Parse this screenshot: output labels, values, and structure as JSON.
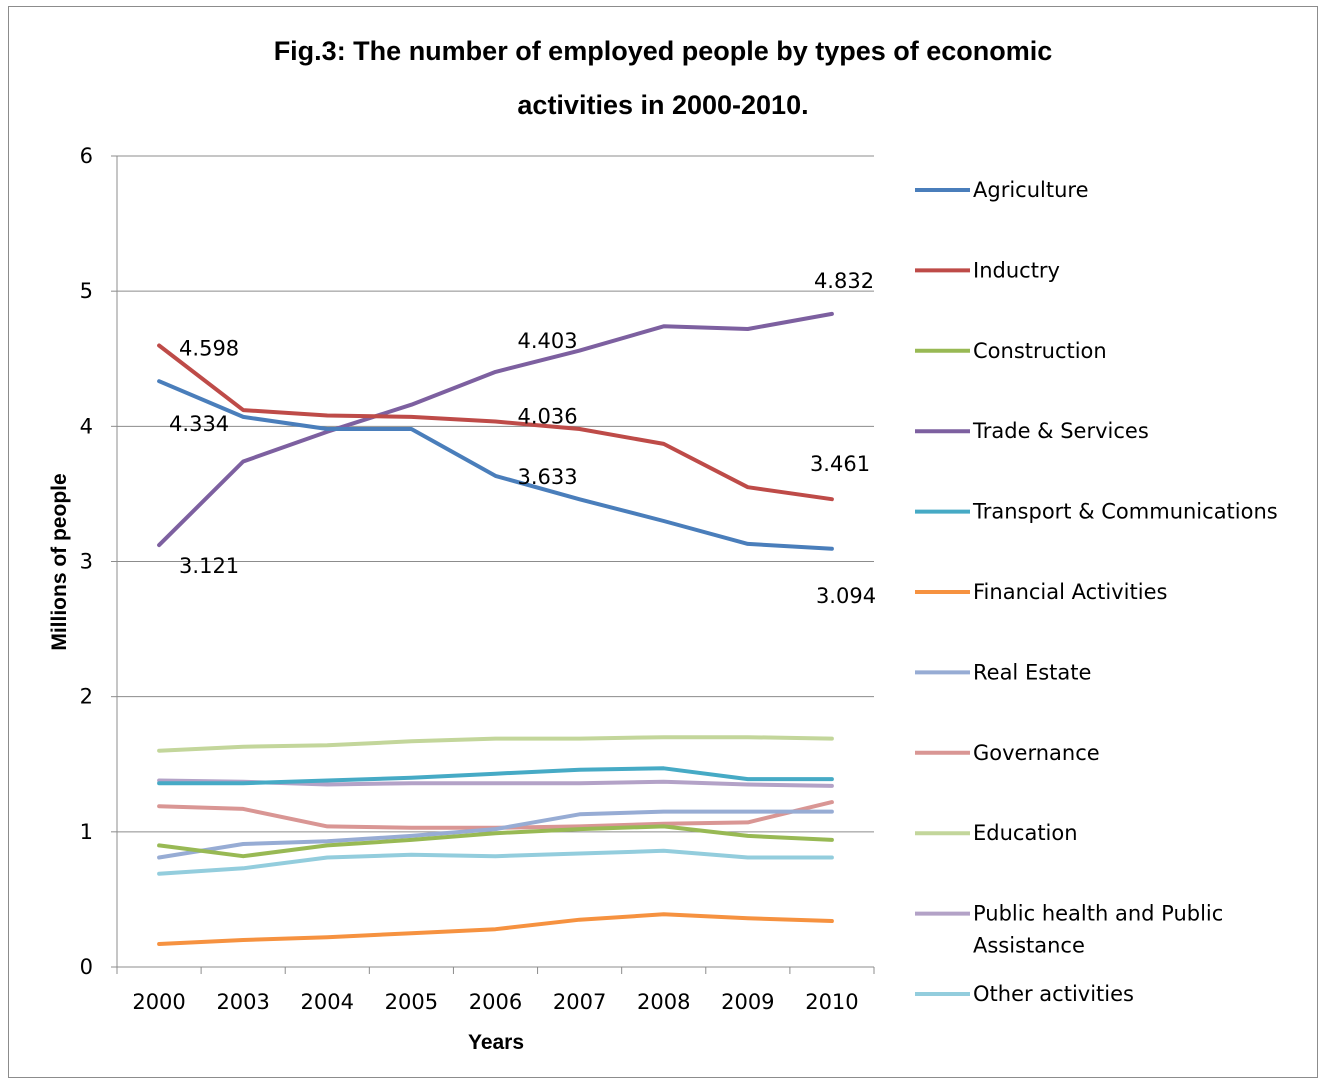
{
  "chart_data": {
    "type": "line",
    "title_lines": [
      "Fig.3: The number of employed people by types of economic",
      "activities in 2000-2010."
    ],
    "xlabel": "Years",
    "ylabel": "Millions of people",
    "ylim": [
      0,
      6
    ],
    "yticks": [
      "0",
      "1",
      "2",
      "3",
      "4",
      "5",
      "6"
    ],
    "categories": [
      "2000",
      "2003",
      "2004",
      "2005",
      "2006",
      "2007",
      "2008",
      "2009",
      "2010"
    ],
    "grid": true,
    "legend_position": "right",
    "series": [
      {
        "name": "Agriculture",
        "color": "#4a7ebb",
        "values": [
          4.334,
          4.07,
          3.98,
          3.98,
          3.633,
          3.46,
          3.3,
          3.13,
          3.094
        ]
      },
      {
        "name": "Inductry",
        "color": "#be4b48",
        "values": [
          4.598,
          4.12,
          4.08,
          4.07,
          4.036,
          3.98,
          3.87,
          3.55,
          3.461
        ]
      },
      {
        "name": "Construction",
        "color": "#98b954",
        "values": [
          0.9,
          0.82,
          0.9,
          0.94,
          0.99,
          1.02,
          1.04,
          0.97,
          0.94
        ]
      },
      {
        "name": "Trade & Services",
        "color": "#7d60a0",
        "values": [
          3.121,
          3.74,
          3.96,
          4.16,
          4.403,
          4.56,
          4.74,
          4.72,
          4.832
        ]
      },
      {
        "name": "Transport & Communications",
        "color": "#46aac5",
        "values": [
          1.36,
          1.36,
          1.38,
          1.4,
          1.43,
          1.46,
          1.47,
          1.39,
          1.39
        ]
      },
      {
        "name": "Financial Activities",
        "color": "#f69240",
        "values": [
          0.17,
          0.2,
          0.22,
          0.25,
          0.28,
          0.35,
          0.39,
          0.36,
          0.34
        ]
      },
      {
        "name": "Real Estate",
        "color": "#97acd4",
        "values": [
          0.81,
          0.91,
          0.93,
          0.97,
          1.02,
          1.13,
          1.15,
          1.15,
          1.15
        ]
      },
      {
        "name": "Governance",
        "color": "#d99694",
        "values": [
          1.19,
          1.17,
          1.04,
          1.03,
          1.03,
          1.04,
          1.06,
          1.07,
          1.22
        ]
      },
      {
        "name": "Education",
        "color": "#c3d69b",
        "values": [
          1.6,
          1.63,
          1.64,
          1.67,
          1.69,
          1.69,
          1.7,
          1.7,
          1.69
        ]
      },
      {
        "name": "Public health and Public Assistance",
        "color": "#b3a2c7",
        "values": [
          1.38,
          1.37,
          1.35,
          1.36,
          1.36,
          1.36,
          1.37,
          1.35,
          1.34
        ]
      },
      {
        "name": "Other activities",
        "color": "#93cddd",
        "values": [
          0.69,
          0.73,
          0.81,
          0.83,
          0.82,
          0.84,
          0.86,
          0.81,
          0.81
        ]
      }
    ],
    "data_labels": [
      {
        "text": "4.598",
        "series": "Inductry",
        "category": "2000"
      },
      {
        "text": "4.334",
        "series": "Agriculture",
        "category": "2000"
      },
      {
        "text": "3.121",
        "series": "Trade & Services",
        "category": "2000"
      },
      {
        "text": "4.403",
        "series": "Trade & Services",
        "category": "2006"
      },
      {
        "text": "4.036",
        "series": "Inductry",
        "category": "2006"
      },
      {
        "text": "3.633",
        "series": "Agriculture",
        "category": "2006"
      },
      {
        "text": "4.832",
        "series": "Trade & Services",
        "category": "2010"
      },
      {
        "text": "3.461",
        "series": "Inductry",
        "category": "2010"
      },
      {
        "text": "3.094",
        "series": "Agriculture",
        "category": "2010"
      }
    ]
  }
}
